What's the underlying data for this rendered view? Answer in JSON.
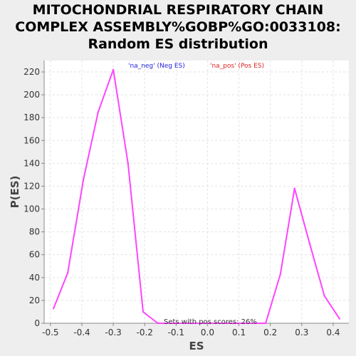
{
  "chart_data": {
    "type": "line",
    "title": [
      "MITOCHONDRIAL RESPIRATORY CHAIN",
      "COMPLEX ASSEMBLY%GOBP%GO:0033108:",
      "Random ES distribution"
    ],
    "xlabel": "ES",
    "ylabel": "P(ES)",
    "xlim": [
      -0.52,
      0.45
    ],
    "ylim": [
      0,
      230
    ],
    "xticks": [
      -0.5,
      -0.4,
      -0.3,
      -0.2,
      -0.1,
      0.0,
      0.1,
      0.2,
      0.3,
      0.4
    ],
    "xtick_labels": [
      "-0.5",
      "-0.4",
      "-0.3",
      "-0.2",
      "-0.1",
      "0.0",
      "0.1",
      "0.2",
      "0.3",
      "0.4"
    ],
    "yticks": [
      0,
      20,
      40,
      60,
      80,
      100,
      120,
      140,
      160,
      180,
      200,
      220
    ],
    "grid": true,
    "series": [
      {
        "color": "#ff44ff",
        "x": [
          -0.49,
          -0.445,
          -0.395,
          -0.348,
          -0.3,
          -0.253,
          -0.205,
          -0.158,
          0.185,
          0.232,
          0.277,
          0.325,
          0.372,
          0.42
        ],
        "y": [
          13,
          44,
          126,
          185,
          222,
          140,
          10,
          0,
          0,
          43,
          118,
          70,
          24,
          4
        ]
      }
    ],
    "legend": [
      {
        "label": "'na_neg' (Neg ES)",
        "color": "#2222dd"
      },
      {
        "label": "'na_pos' (Pos ES)",
        "color": "#dd2222"
      }
    ],
    "annotation": "Sets with pos scores: 26%"
  }
}
